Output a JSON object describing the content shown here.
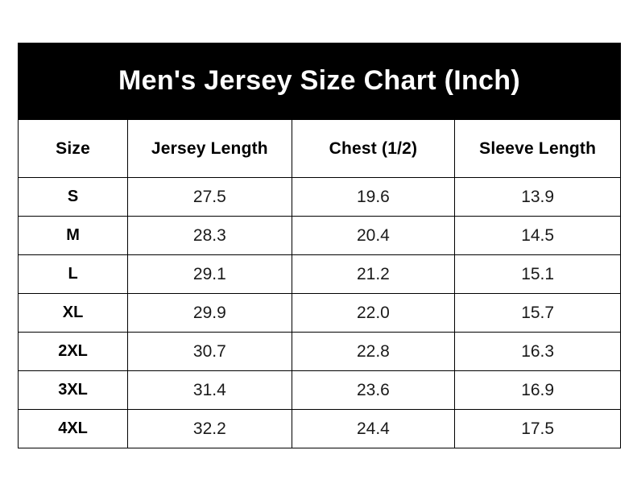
{
  "banner": {
    "title": "Men's Jersey Size Chart (Inch)"
  },
  "colors": {
    "page_bg": "#ffffff",
    "banner_bg": "#000000",
    "banner_text": "#ffffff",
    "border": "#000000",
    "header_text": "#000000",
    "cell_text": "#1a1a1a"
  },
  "chart_data": {
    "type": "table",
    "title": "Men's Jersey Size Chart (Inch)",
    "columns": [
      "Size",
      "Jersey Length",
      "Chest (1/2)",
      "Sleeve Length"
    ],
    "rows": [
      [
        "S",
        "27.5",
        "19.6",
        "13.9"
      ],
      [
        "M",
        "28.3",
        "20.4",
        "14.5"
      ],
      [
        "L",
        "29.1",
        "21.2",
        "15.1"
      ],
      [
        "XL",
        "29.9",
        "22.0",
        "15.7"
      ],
      [
        "2XL",
        "30.7",
        "22.8",
        "16.3"
      ],
      [
        "3XL",
        "31.4",
        "23.6",
        "16.9"
      ],
      [
        "4XL",
        "32.2",
        "24.4",
        "17.5"
      ]
    ]
  }
}
